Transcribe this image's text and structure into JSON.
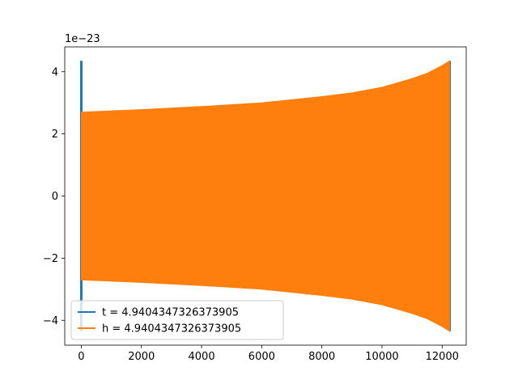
{
  "chart_data": {
    "type": "line",
    "title": "",
    "xlabel": "",
    "ylabel": "",
    "offset_text": "1e−23",
    "xlim": [
      -550,
      12800
    ],
    "ylim": [
      -4.8,
      4.8
    ],
    "y_scale_exponent": -23,
    "xticks": [
      0,
      2000,
      4000,
      6000,
      8000,
      10000,
      12000
    ],
    "xtick_labels": [
      "0",
      "2000",
      "4000",
      "6000",
      "8000",
      "10000",
      "12000"
    ],
    "yticks": [
      -4,
      -2,
      0,
      2,
      4
    ],
    "ytick_labels": [
      "−4",
      "−2",
      "0",
      "2",
      "4"
    ],
    "grid": false,
    "legend_position": "lower-left",
    "series": [
      {
        "name": "t = 4.9404347326373905",
        "color": "#1f77b4",
        "description": "oscillating signal, visible only at its start and end behind the orange series",
        "x_start": 0,
        "x_end": 12250,
        "spikes": [
          {
            "x": 0,
            "y_min": -4.35,
            "y_max": 4.35
          },
          {
            "x": 12250,
            "y_min": -4.35,
            "y_max": 4.35
          }
        ]
      },
      {
        "name": "h = 4.9404347326373905",
        "color": "#ff7f0e",
        "description": "rapidly oscillating chirp whose envelope grows from about 2.7 to 4.35 (x1e-23)",
        "x_start": 0,
        "x_end": 12250,
        "envelope_x": [
          0,
          2000,
          4000,
          6000,
          8000,
          9000,
          10000,
          11000,
          11500,
          12000,
          12250
        ],
        "envelope_amplitude": [
          2.7,
          2.78,
          2.88,
          3.0,
          3.2,
          3.32,
          3.5,
          3.78,
          3.95,
          4.2,
          4.35
        ]
      }
    ]
  }
}
